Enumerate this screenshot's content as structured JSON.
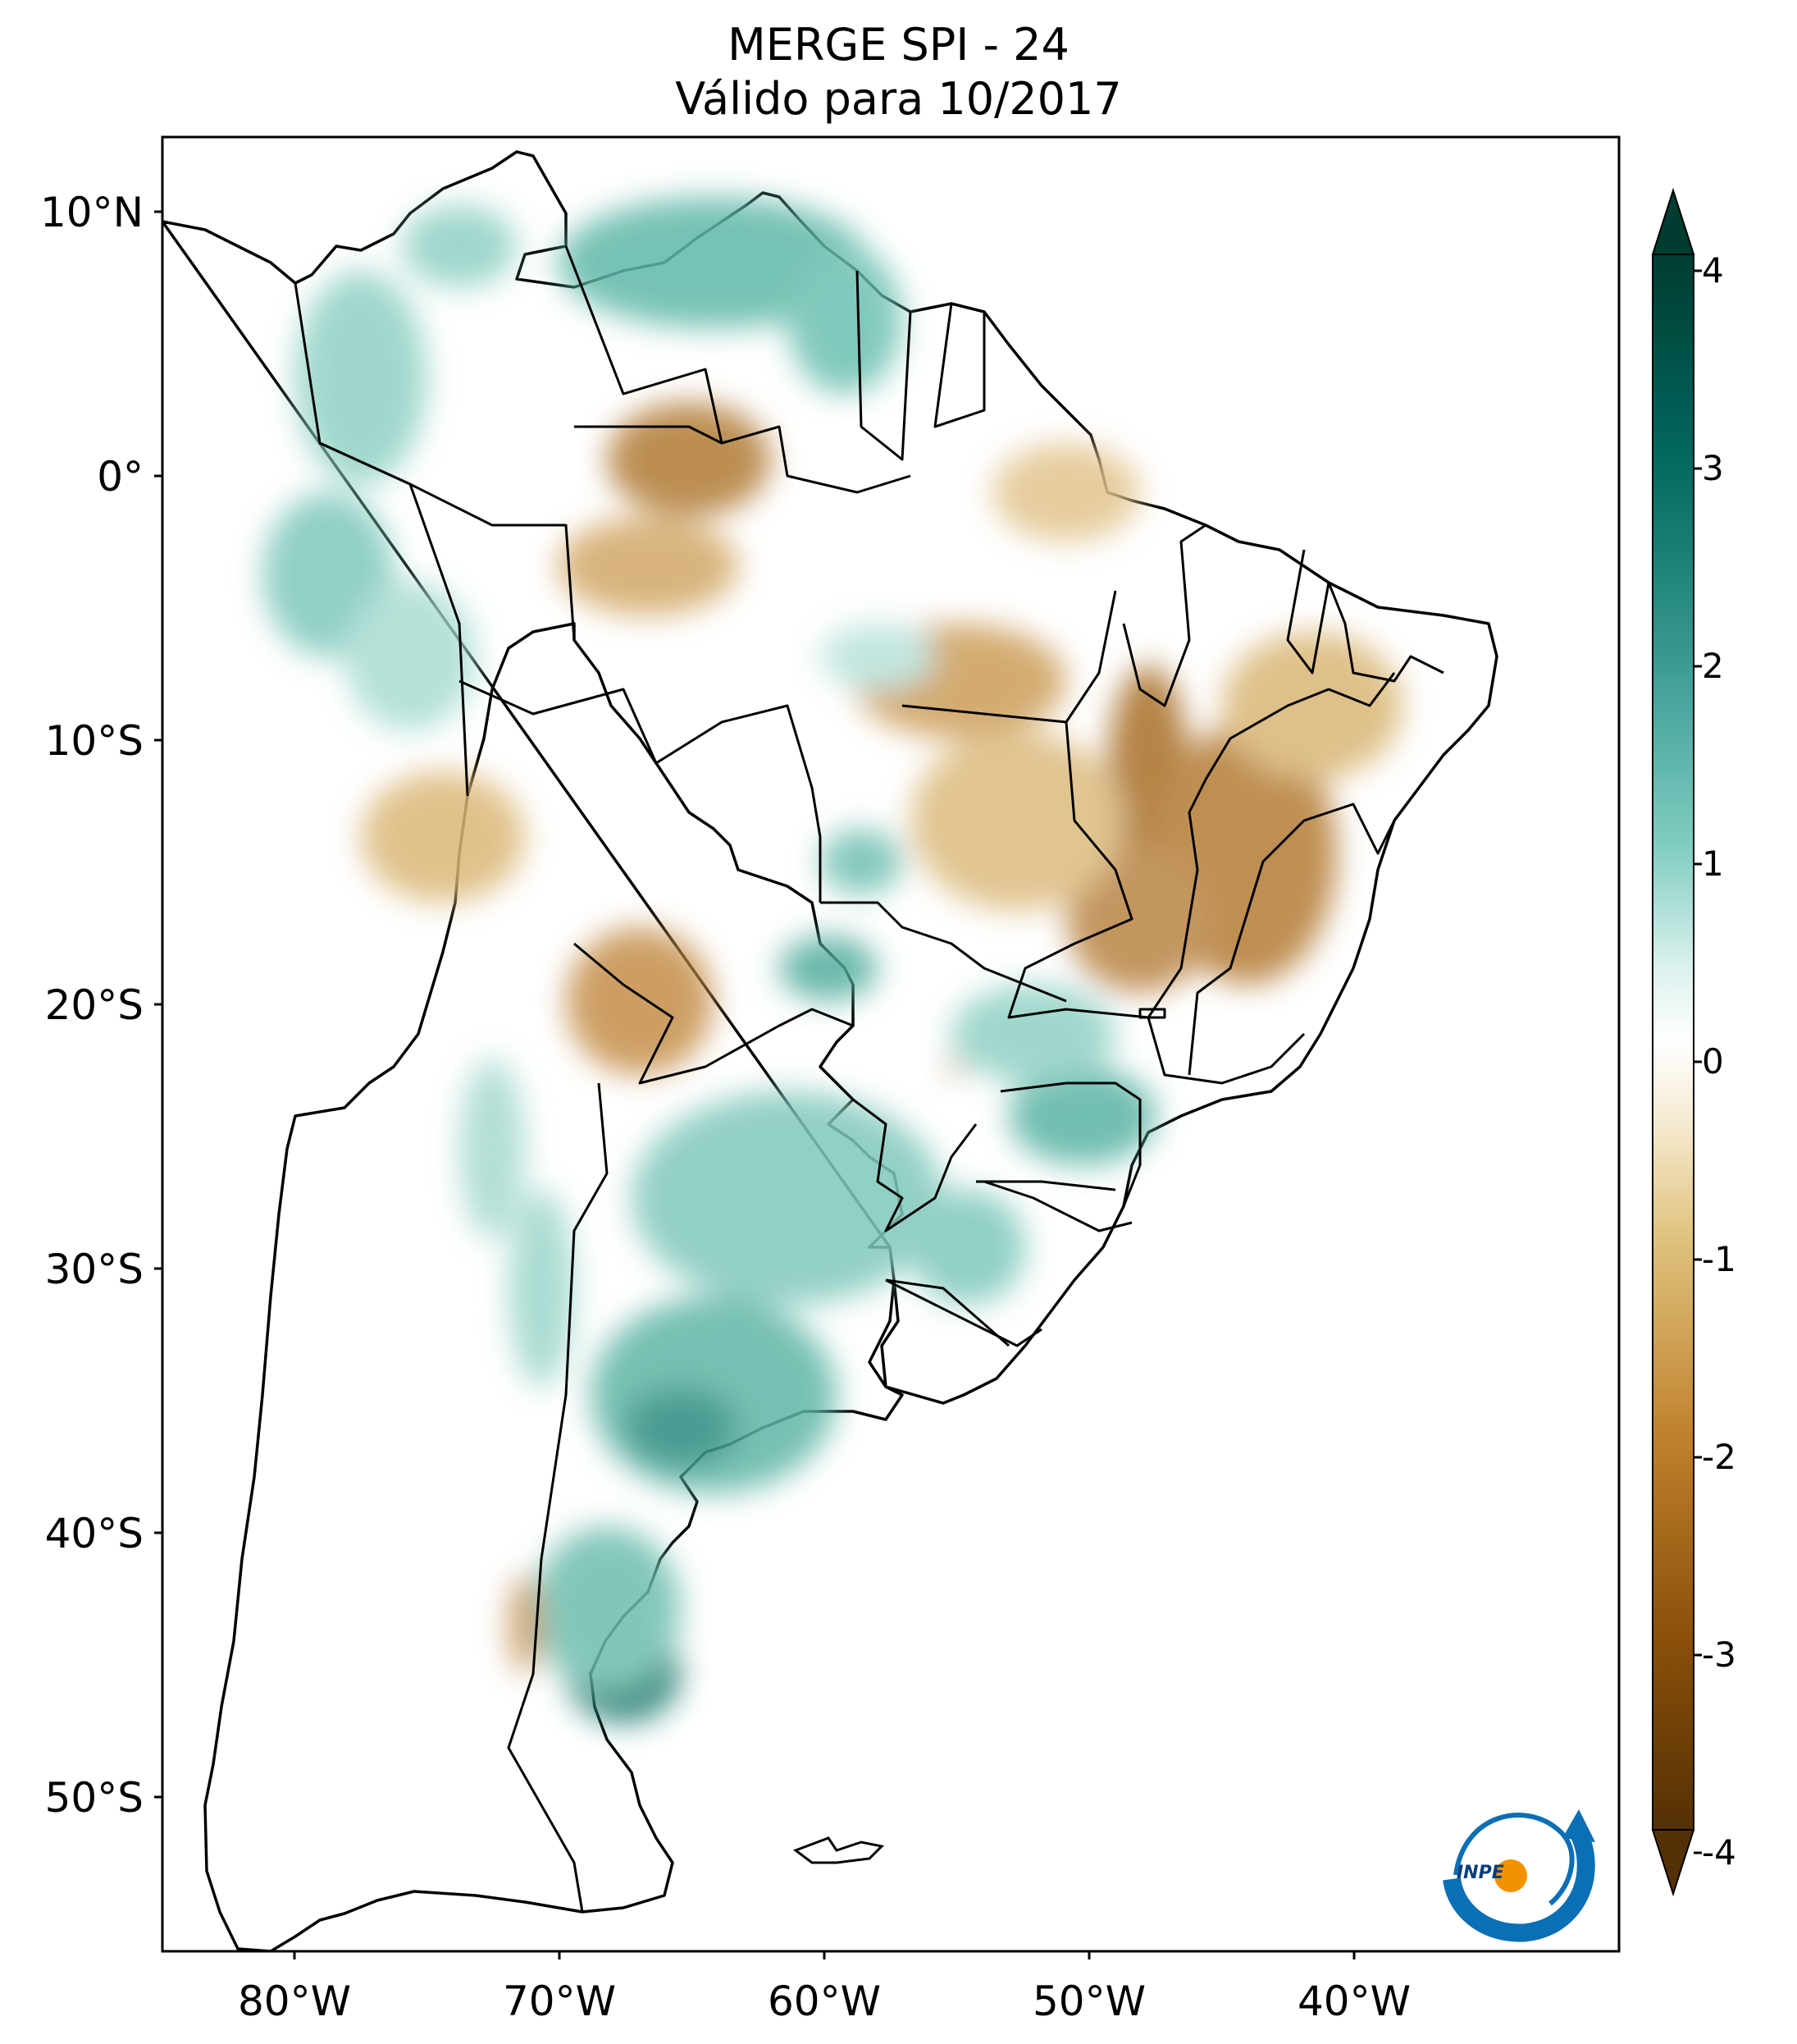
{
  "title": {
    "line1": "MERGE   SPI - 24",
    "line2": "Válido para 10/2017"
  },
  "axes": {
    "lat_labels": [
      "10°N",
      "0°",
      "10°S",
      "20°S",
      "30°S",
      "40°S",
      "50°S"
    ],
    "lon_labels": [
      "80°W",
      "70°W",
      "60°W",
      "50°W",
      "40°W"
    ],
    "lon_range": [
      -85,
      -30
    ],
    "lat_range": [
      -56,
      12.5
    ]
  },
  "colorbar": {
    "ticks": [
      "4",
      "3",
      "2",
      "1",
      "0",
      "-1",
      "-2",
      "-3",
      "-4"
    ],
    "range": [
      -4,
      4
    ],
    "extend": "both",
    "colors": {
      "neg_max": "#3d2506",
      "neg_mid": "#b8742a",
      "neg_low": "#f2e3bf",
      "zero": "#ffffff",
      "pos_low": "#c8ebe5",
      "pos_mid": "#3fa898",
      "pos_max": "#003c30"
    }
  },
  "logo": {
    "text": "INPE",
    "accent": "#0a6fb5",
    "dot": "#f39200"
  },
  "map": {
    "land_fill": "#ffffff",
    "border": "#000000"
  }
}
